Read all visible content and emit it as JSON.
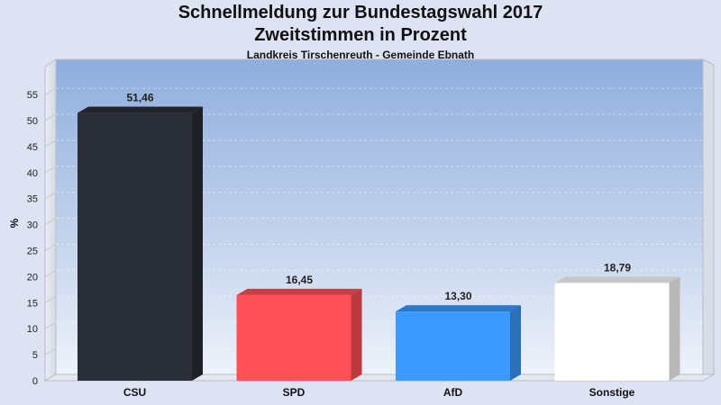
{
  "chart_data": {
    "type": "bar",
    "title": "Schnellmeldung zur Bundestagswahl 2017",
    "subtitle": "Zweitstimmen in Prozent",
    "caption": "Landkreis Tirschenreuth - Gemeinde Ebnath",
    "ylabel": "%",
    "xlabel": "",
    "ylim": [
      0,
      60
    ],
    "yticks": [
      0,
      5,
      10,
      15,
      20,
      25,
      30,
      35,
      40,
      45,
      50,
      55
    ],
    "categories": [
      "CSU",
      "SPD",
      "AfD",
      "Sonstige"
    ],
    "values": [
      51.46,
      16.45,
      13.3,
      18.79
    ],
    "value_labels": [
      "51,46",
      "16,45",
      "13,30",
      "18,79"
    ],
    "colors": [
      "#2a2e36",
      "#ff5058",
      "#3a9aff",
      "#ffffff"
    ],
    "grid": true
  }
}
